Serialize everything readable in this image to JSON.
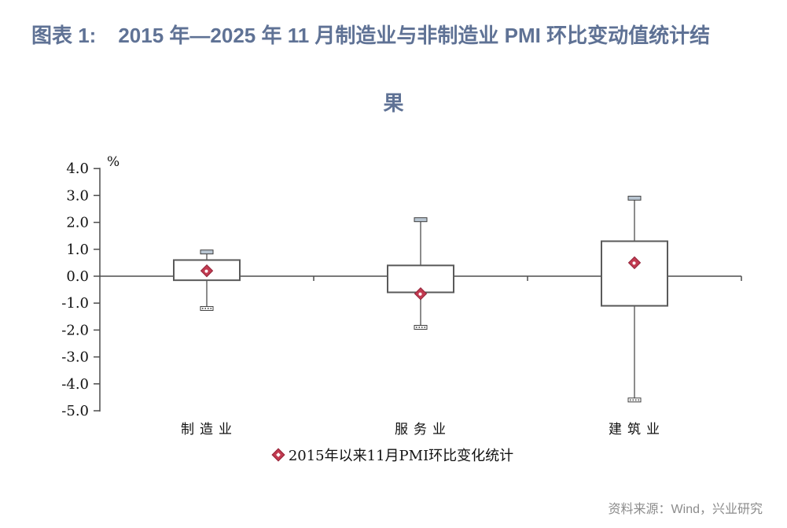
{
  "header": {
    "figure_label": "图表 1:",
    "title_line1": "2015 年—2025 年 11 月制造业与非制造业 PMI 环比变动值统计结",
    "title_line2": "果"
  },
  "chart_data": {
    "type": "boxplot",
    "title": "2015 年—2025 年 11 月制造业与非制造业 PMI 环比变动值统计结果",
    "unit_label": "%",
    "categories": [
      "制造业",
      "服务业",
      "建筑业"
    ],
    "y_axis": {
      "min": -5.0,
      "max": 4.0,
      "step": 1.0,
      "tick_labels": [
        "4.0",
        "3.0",
        "2.0",
        "1.0",
        "0.0",
        "-1.0",
        "-2.0",
        "-3.0",
        "-4.0",
        "-5.0"
      ]
    },
    "grid": false,
    "legend_position": "bottom",
    "series": [
      {
        "name": "2015年以来11月PMI环比变化统计",
        "marker": "diamond",
        "points": [
          {
            "category": "制造业",
            "whisker_high": 0.9,
            "q3": 0.6,
            "q1": -0.15,
            "whisker_low": -1.2,
            "mean": 0.2
          },
          {
            "category": "服务业",
            "whisker_high": 2.1,
            "q3": 0.4,
            "q1": -0.6,
            "whisker_low": -1.9,
            "mean": -0.65
          },
          {
            "category": "建筑业",
            "whisker_high": 2.9,
            "q3": 1.3,
            "q1": -1.1,
            "whisker_low": -4.6,
            "mean": 0.5
          }
        ]
      }
    ]
  },
  "legend": {
    "label": "2015年以来11月PMI环比变化统计"
  },
  "footer": {
    "source": "资料来源：Wind，兴业研究"
  },
  "colors": {
    "title": "#5f7295",
    "axis": "#4d4d4d",
    "box_stroke": "#5a5a5a",
    "whisker": "#7f7f7f",
    "marker_fill": "#c23a50",
    "marker_stroke": "#93253a",
    "cap_fill": "#b9c6d2",
    "label_text": "#111111",
    "source_text": "#8c8c8c"
  }
}
